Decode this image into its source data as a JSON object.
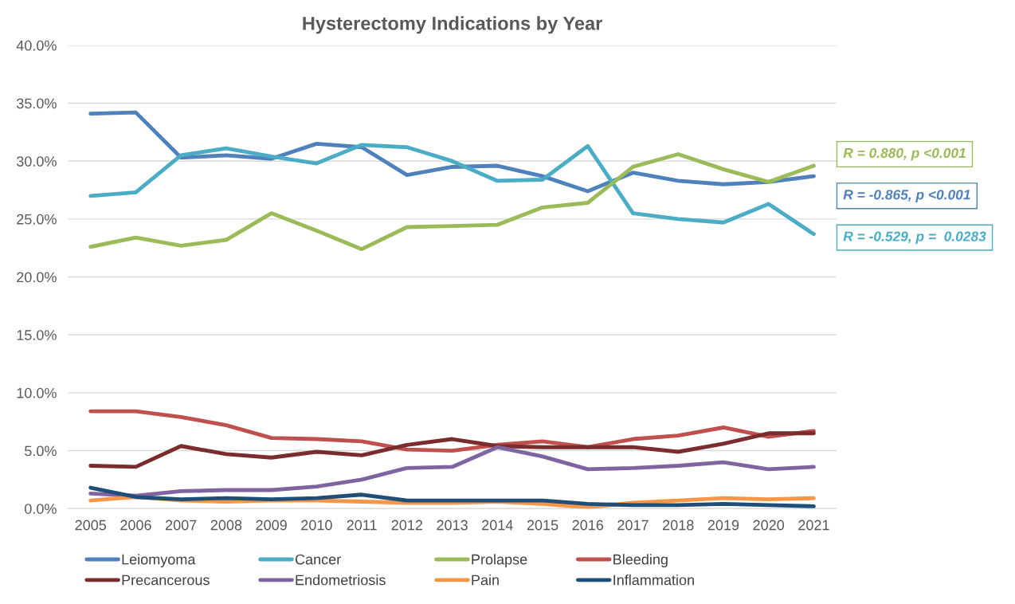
{
  "chart_data": {
    "type": "line",
    "title": "Hysterectomy Indications by Year",
    "categories": [
      "2005",
      "2006",
      "2007",
      "2008",
      "2009",
      "2010",
      "2011",
      "2012",
      "2013",
      "2014",
      "2015",
      "2016",
      "2017",
      "2018",
      "2019",
      "2020",
      "2021"
    ],
    "series": [
      {
        "name": "Leiomyoma",
        "color": "#4f81bd",
        "values": [
          34.1,
          34.2,
          30.3,
          30.5,
          30.2,
          31.5,
          31.2,
          28.8,
          29.5,
          29.6,
          28.7,
          27.4,
          29.0,
          28.3,
          28.0,
          28.2,
          28.7
        ]
      },
      {
        "name": "Cancer",
        "color": "#4bacc6",
        "values": [
          27.0,
          27.3,
          30.5,
          31.1,
          30.4,
          29.8,
          31.4,
          31.2,
          30.0,
          28.3,
          28.4,
          31.3,
          25.5,
          25.0,
          24.7,
          26.3,
          23.7
        ]
      },
      {
        "name": "Prolapse",
        "color": "#9bbb59",
        "values": [
          22.6,
          23.4,
          22.7,
          23.2,
          25.5,
          24.0,
          22.4,
          24.3,
          24.4,
          24.5,
          26.0,
          26.4,
          29.5,
          30.6,
          29.3,
          28.2,
          29.6
        ]
      },
      {
        "name": "Bleeding",
        "color": "#c0504d",
        "values": [
          8.4,
          8.4,
          7.9,
          7.2,
          6.1,
          6.0,
          5.8,
          5.1,
          5.0,
          5.5,
          5.8,
          5.3,
          6.0,
          6.3,
          7.0,
          6.2,
          6.7
        ]
      },
      {
        "name": "Precancerous",
        "color": "#7b2c2c",
        "values": [
          3.7,
          3.6,
          5.4,
          4.7,
          4.4,
          4.9,
          4.6,
          5.5,
          6.0,
          5.4,
          5.3,
          5.3,
          5.3,
          4.9,
          5.6,
          6.5,
          6.5
        ]
      },
      {
        "name": "Endometriosis",
        "color": "#8064a2",
        "values": [
          1.3,
          1.1,
          1.5,
          1.6,
          1.6,
          1.9,
          2.5,
          3.5,
          3.6,
          5.3,
          4.5,
          3.4,
          3.5,
          3.7,
          4.0,
          3.4,
          3.6
        ]
      },
      {
        "name": "Pain",
        "color": "#f79646",
        "values": [
          0.7,
          1.0,
          0.7,
          0.6,
          0.7,
          0.7,
          0.6,
          0.5,
          0.5,
          0.6,
          0.4,
          0.1,
          0.5,
          0.7,
          0.9,
          0.8,
          0.9
        ]
      },
      {
        "name": "Inflammation",
        "color": "#1f4e79",
        "values": [
          1.8,
          1.0,
          0.8,
          0.9,
          0.8,
          0.9,
          1.2,
          0.7,
          0.7,
          0.7,
          0.7,
          0.4,
          0.3,
          0.3,
          0.4,
          0.3,
          0.2
        ]
      }
    ],
    "ylim": [
      0,
      40
    ],
    "yticks": [
      {
        "value": 0,
        "label": "0.0%"
      },
      {
        "value": 5,
        "label": "5.0%"
      },
      {
        "value": 10,
        "label": "10.0%"
      },
      {
        "value": 15,
        "label": "15.0%"
      },
      {
        "value": 20,
        "label": "20.0%"
      },
      {
        "value": 25,
        "label": "25.0%"
      },
      {
        "value": 30,
        "label": "30.0%"
      },
      {
        "value": 35,
        "label": "35.0%"
      },
      {
        "value": 40,
        "label": "40.0%"
      }
    ],
    "annotations": [
      {
        "text": "R = 0.880, p <0.001",
        "x": "2021",
        "y": 29.6
      },
      {
        "text": "R = -0.865, p <0.001",
        "x": "2021",
        "y": 28.7
      },
      {
        "text": "R = -0.529, p =  0.0283",
        "x": "2021",
        "y": 23.7
      }
    ],
    "grid": "y",
    "legend": "bottom",
    "marker": "none",
    "line_style": "solid"
  }
}
